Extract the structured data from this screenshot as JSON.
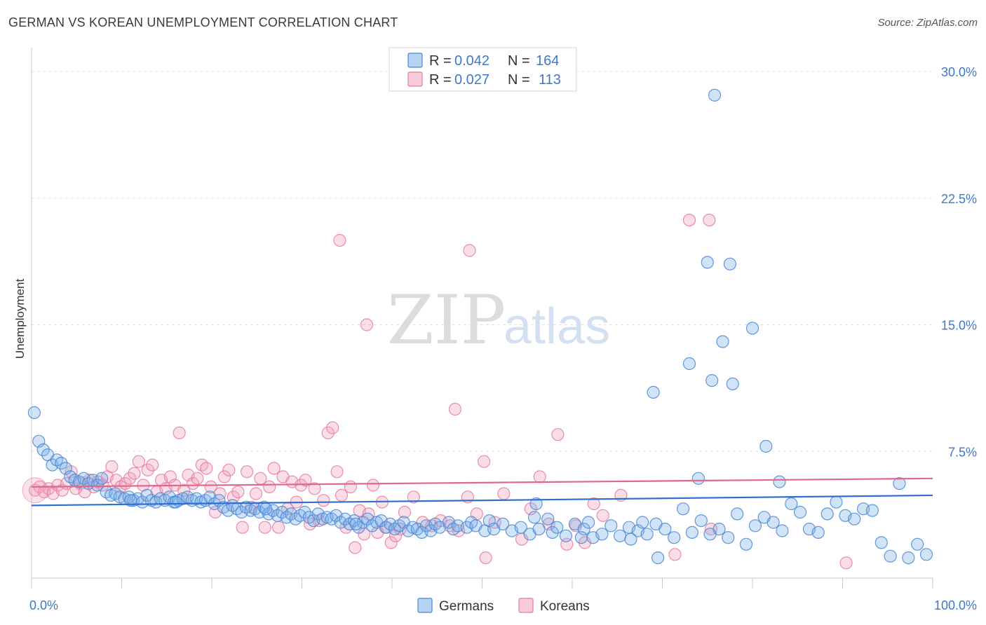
{
  "title": "GERMAN VS KOREAN UNEMPLOYMENT CORRELATION CHART",
  "source": "Source: ZipAtlas.com",
  "watermark": {
    "zip": "ZIP",
    "atlas": "atlas"
  },
  "legend": {
    "rows": [
      {
        "r_label": "R = ",
        "r_value": "0.042",
        "n_label": "N = ",
        "n_value": "164",
        "color": "#7aaee8"
      },
      {
        "r_label": "R = ",
        "r_value": "0.027",
        "n_label": "N = ",
        "n_value": "113",
        "color": "#f2a0bb"
      }
    ]
  },
  "chart_data": {
    "type": "scatter",
    "title": "GERMAN VS KOREAN UNEMPLOYMENT CORRELATION CHART",
    "xlabel": "",
    "ylabel": "Unemployment",
    "xlim": [
      0,
      100
    ],
    "ylim": [
      0,
      31
    ],
    "x_tick_labels": [
      "0.0%",
      "100.0%"
    ],
    "y_ticks": [
      7.5,
      15.0,
      22.5,
      30.0
    ],
    "y_tick_labels": [
      "7.5%",
      "15.0%",
      "22.5%",
      "30.0%"
    ],
    "grid": true,
    "legend_position": "top-center",
    "series": [
      {
        "name": "Germans",
        "color": "#7aaee8",
        "stroke": "#4a86d4",
        "trend": {
          "x": [
            0,
            100
          ],
          "y": [
            4.3,
            4.9
          ],
          "color": "#2f6fd1"
        },
        "points": [
          [
            0.3,
            9.8
          ],
          [
            0.8,
            8.1
          ],
          [
            1.3,
            7.6
          ],
          [
            1.8,
            7.3
          ],
          [
            2.3,
            6.7
          ],
          [
            2.8,
            7.0
          ],
          [
            3.3,
            6.8
          ],
          [
            3.8,
            6.5
          ],
          [
            4.3,
            6.0
          ],
          [
            4.8,
            5.8
          ],
          [
            5.3,
            5.7
          ],
          [
            5.8,
            5.9
          ],
          [
            6.3,
            5.6
          ],
          [
            6.8,
            5.8
          ],
          [
            7.3,
            5.5
          ],
          [
            7.8,
            5.9
          ],
          [
            8.3,
            5.1
          ],
          [
            8.8,
            4.9
          ],
          [
            9.3,
            5.0
          ],
          [
            9.8,
            4.8
          ],
          [
            10.3,
            4.7
          ],
          [
            10.8,
            4.8
          ],
          [
            11.3,
            4.6
          ],
          [
            11.8,
            4.7
          ],
          [
            12.3,
            4.5
          ],
          [
            12.8,
            4.9
          ],
          [
            13.3,
            4.6
          ],
          [
            13.8,
            4.5
          ],
          [
            14.3,
            4.7
          ],
          [
            14.8,
            4.6
          ],
          [
            15.3,
            4.8
          ],
          [
            15.8,
            4.5
          ],
          [
            16.3,
            4.6
          ],
          [
            16.8,
            4.7
          ],
          [
            17.3,
            4.8
          ],
          [
            17.8,
            4.6
          ],
          [
            18.3,
            4.7
          ],
          [
            18.8,
            4.5
          ],
          [
            19.3,
            4.6
          ],
          [
            19.8,
            4.8
          ],
          [
            20.3,
            4.4
          ],
          [
            20.8,
            4.6
          ],
          [
            21.3,
            4.2
          ],
          [
            21.8,
            4.0
          ],
          [
            22.3,
            4.3
          ],
          [
            22.8,
            4.1
          ],
          [
            23.3,
            3.9
          ],
          [
            23.8,
            4.2
          ],
          [
            24.3,
            4.0
          ],
          [
            24.8,
            4.1
          ],
          [
            25.3,
            3.9
          ],
          [
            25.8,
            4.2
          ],
          [
            26.3,
            3.8
          ],
          [
            26.8,
            4.0
          ],
          [
            27.3,
            3.7
          ],
          [
            27.8,
            3.9
          ],
          [
            28.3,
            3.6
          ],
          [
            28.8,
            3.8
          ],
          [
            29.3,
            3.5
          ],
          [
            29.8,
            3.7
          ],
          [
            30.3,
            3.9
          ],
          [
            30.8,
            3.6
          ],
          [
            31.3,
            3.4
          ],
          [
            31.8,
            3.8
          ],
          [
            32.3,
            3.5
          ],
          [
            32.8,
            3.6
          ],
          [
            33.3,
            3.5
          ],
          [
            33.8,
            3.7
          ],
          [
            34.3,
            3.3
          ],
          [
            34.8,
            3.5
          ],
          [
            35.3,
            3.2
          ],
          [
            35.8,
            3.4
          ],
          [
            36.3,
            3.0
          ],
          [
            36.8,
            3.3
          ],
          [
            37.3,
            3.5
          ],
          [
            37.8,
            3.1
          ],
          [
            38.3,
            3.3
          ],
          [
            38.8,
            3.4
          ],
          [
            39.3,
            3.0
          ],
          [
            39.8,
            3.2
          ],
          [
            40.3,
            2.9
          ],
          [
            40.8,
            3.1
          ],
          [
            41.3,
            3.3
          ],
          [
            41.8,
            2.8
          ],
          [
            42.3,
            3.0
          ],
          [
            42.8,
            2.9
          ],
          [
            43.3,
            2.7
          ],
          [
            43.8,
            3.1
          ],
          [
            44.3,
            2.8
          ],
          [
            44.8,
            3.2
          ],
          [
            45.3,
            3.0
          ],
          [
            46.3,
            3.3
          ],
          [
            46.8,
            2.9
          ],
          [
            47.3,
            3.1
          ],
          [
            48.3,
            3.0
          ],
          [
            48.8,
            3.3
          ],
          [
            49.3,
            3.1
          ],
          [
            50.3,
            2.8
          ],
          [
            50.8,
            3.4
          ],
          [
            51.3,
            2.9
          ],
          [
            52.3,
            3.2
          ],
          [
            53.3,
            2.8
          ],
          [
            54.3,
            3.0
          ],
          [
            55.3,
            2.6
          ],
          [
            55.8,
            3.6
          ],
          [
            56.3,
            2.9
          ],
          [
            57.3,
            3.5
          ],
          [
            57.8,
            2.7
          ],
          [
            58.3,
            3.0
          ],
          [
            59.3,
            2.5
          ],
          [
            60.3,
            3.2
          ],
          [
            61.3,
            2.9
          ],
          [
            61.8,
            3.3
          ],
          [
            62.3,
            2.4
          ],
          [
            63.3,
            2.6
          ],
          [
            64.3,
            3.1
          ],
          [
            65.3,
            2.5
          ],
          [
            66.3,
            3.0
          ],
          [
            67.3,
            2.8
          ],
          [
            67.8,
            3.3
          ],
          [
            68.3,
            2.6
          ],
          [
            69.3,
            3.2
          ],
          [
            70.3,
            2.9
          ],
          [
            71.3,
            2.4
          ],
          [
            72.3,
            4.1
          ],
          [
            73.3,
            2.7
          ],
          [
            74.3,
            3.4
          ],
          [
            75.3,
            2.6
          ],
          [
            76.3,
            2.9
          ],
          [
            77.3,
            2.4
          ],
          [
            78.3,
            3.8
          ],
          [
            79.3,
            2.0
          ],
          [
            80.3,
            3.1
          ],
          [
            81.3,
            3.6
          ],
          [
            82.3,
            3.3
          ],
          [
            83.3,
            2.8
          ],
          [
            84.3,
            4.4
          ],
          [
            85.3,
            3.9
          ],
          [
            86.3,
            2.9
          ],
          [
            87.3,
            2.7
          ],
          [
            88.3,
            3.8
          ],
          [
            89.3,
            4.5
          ],
          [
            90.3,
            3.7
          ],
          [
            91.3,
            3.5
          ],
          [
            92.3,
            4.1
          ],
          [
            93.3,
            4.0
          ],
          [
            94.3,
            2.1
          ],
          [
            95.3,
            1.3
          ],
          [
            96.3,
            5.6
          ],
          [
            97.3,
            1.2
          ],
          [
            98.3,
            2.0
          ],
          [
            99.3,
            1.4
          ],
          [
            11.0,
            4.6
          ],
          [
            16.0,
            4.5
          ],
          [
            26.0,
            4.1
          ],
          [
            36.0,
            3.2
          ],
          [
            56.0,
            4.4
          ],
          [
            66.5,
            2.3
          ],
          [
            74.0,
            5.9
          ],
          [
            81.5,
            7.8
          ],
          [
            69.0,
            11.0
          ],
          [
            73.0,
            12.7
          ],
          [
            75.5,
            11.7
          ],
          [
            76.7,
            14.0
          ],
          [
            77.8,
            11.5
          ],
          [
            80.0,
            14.8
          ],
          [
            75.0,
            18.7
          ],
          [
            77.5,
            18.6
          ],
          [
            75.8,
            28.6
          ],
          [
            83.0,
            5.7
          ],
          [
            69.5,
            1.2
          ],
          [
            61.0,
            2.4
          ]
        ]
      },
      {
        "name": "Koreans",
        "color": "#f2a0bb",
        "stroke": "#e57a9f",
        "trend": {
          "x": [
            0,
            100
          ],
          "y": [
            5.4,
            5.9
          ],
          "color": "#e0688f"
        },
        "points": [
          [
            0.4,
            5.2
          ],
          [
            0.9,
            5.4
          ],
          [
            1.4,
            5.1
          ],
          [
            1.9,
            5.3
          ],
          [
            2.4,
            5.0
          ],
          [
            2.9,
            5.5
          ],
          [
            3.4,
            5.2
          ],
          [
            3.9,
            5.6
          ],
          [
            4.4,
            6.3
          ],
          [
            4.9,
            5.3
          ],
          [
            5.4,
            5.6
          ],
          [
            5.9,
            5.1
          ],
          [
            6.4,
            5.8
          ],
          [
            6.9,
            5.4
          ],
          [
            7.4,
            5.7
          ],
          [
            7.9,
            5.5
          ],
          [
            8.4,
            6.0
          ],
          [
            8.9,
            6.6
          ],
          [
            9.4,
            5.8
          ],
          [
            9.9,
            5.4
          ],
          [
            10.4,
            5.6
          ],
          [
            10.9,
            5.9
          ],
          [
            11.4,
            6.2
          ],
          [
            11.9,
            6.9
          ],
          [
            12.4,
            5.5
          ],
          [
            12.9,
            6.4
          ],
          [
            13.4,
            6.7
          ],
          [
            13.9,
            5.1
          ],
          [
            14.4,
            5.8
          ],
          [
            14.9,
            5.3
          ],
          [
            15.4,
            6.0
          ],
          [
            15.9,
            5.5
          ],
          [
            16.4,
            8.6
          ],
          [
            16.9,
            5.2
          ],
          [
            17.4,
            6.1
          ],
          [
            17.9,
            5.6
          ],
          [
            18.4,
            5.9
          ],
          [
            18.9,
            6.7
          ],
          [
            19.4,
            6.5
          ],
          [
            19.9,
            5.4
          ],
          [
            20.4,
            3.9
          ],
          [
            20.9,
            5.0
          ],
          [
            21.4,
            6.0
          ],
          [
            21.9,
            6.4
          ],
          [
            22.4,
            4.8
          ],
          [
            22.9,
            5.1
          ],
          [
            23.4,
            3.0
          ],
          [
            23.9,
            6.3
          ],
          [
            24.4,
            4.2
          ],
          [
            24.9,
            5.0
          ],
          [
            25.4,
            5.9
          ],
          [
            25.9,
            3.0
          ],
          [
            26.4,
            5.4
          ],
          [
            26.9,
            6.5
          ],
          [
            27.4,
            3.0
          ],
          [
            27.9,
            6.0
          ],
          [
            28.4,
            4.1
          ],
          [
            28.9,
            5.7
          ],
          [
            29.4,
            4.5
          ],
          [
            29.9,
            5.5
          ],
          [
            30.4,
            5.8
          ],
          [
            30.9,
            3.2
          ],
          [
            31.4,
            5.3
          ],
          [
            31.9,
            3.4
          ],
          [
            32.4,
            4.6
          ],
          [
            32.9,
            8.6
          ],
          [
            33.4,
            8.9
          ],
          [
            33.9,
            6.3
          ],
          [
            34.4,
            4.9
          ],
          [
            34.9,
            3.0
          ],
          [
            35.4,
            5.4
          ],
          [
            35.9,
            1.8
          ],
          [
            36.4,
            4.0
          ],
          [
            36.9,
            2.6
          ],
          [
            37.4,
            3.8
          ],
          [
            37.9,
            5.5
          ],
          [
            38.4,
            2.7
          ],
          [
            38.9,
            4.5
          ],
          [
            39.4,
            3.0
          ],
          [
            39.9,
            2.1
          ],
          [
            40.4,
            2.5
          ],
          [
            40.9,
            2.9
          ],
          [
            41.4,
            3.9
          ],
          [
            42.4,
            4.8
          ],
          [
            43.4,
            3.3
          ],
          [
            44.4,
            3.1
          ],
          [
            45.4,
            3.4
          ],
          [
            46.4,
            3.1
          ],
          [
            47.4,
            2.8
          ],
          [
            48.4,
            4.8
          ],
          [
            49.4,
            3.8
          ],
          [
            50.4,
            1.2
          ],
          [
            51.4,
            3.3
          ],
          [
            52.4,
            5.0
          ],
          [
            54.4,
            2.3
          ],
          [
            55.4,
            4.1
          ],
          [
            56.4,
            6.0
          ],
          [
            57.4,
            3.2
          ],
          [
            58.4,
            8.5
          ],
          [
            59.4,
            2.0
          ],
          [
            60.4,
            3.1
          ],
          [
            61.4,
            2.1
          ],
          [
            62.4,
            4.4
          ],
          [
            63.4,
            3.7
          ],
          [
            65.4,
            4.9
          ],
          [
            71.4,
            1.4
          ],
          [
            75.4,
            2.9
          ],
          [
            90.4,
            0.9
          ],
          [
            34.2,
            20.0
          ],
          [
            48.6,
            19.4
          ],
          [
            37.2,
            15.0
          ],
          [
            47.0,
            10.0
          ],
          [
            50.2,
            6.9
          ],
          [
            73.0,
            21.2
          ],
          [
            75.2,
            21.2
          ]
        ]
      }
    ]
  }
}
